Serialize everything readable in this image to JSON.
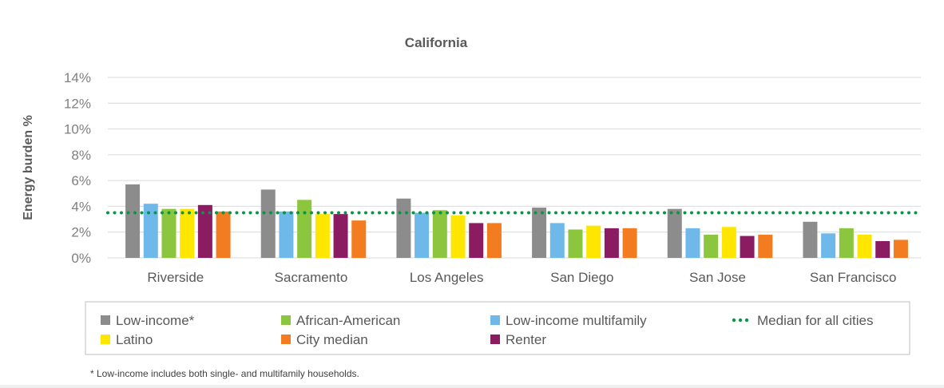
{
  "chart_data": {
    "type": "bar",
    "title": "California",
    "ylabel": "Energy burden %",
    "xlabel": "",
    "ylim": [
      0,
      14
    ],
    "yticks": [
      0,
      2,
      4,
      6,
      8,
      10,
      12,
      14
    ],
    "ytick_labels": [
      "0%",
      "2%",
      "4%",
      "6%",
      "8%",
      "10%",
      "12%",
      "14%"
    ],
    "grid": true,
    "categories": [
      "Riverside",
      "Sacramento",
      "Los Angeles",
      "San Diego",
      "San Jose",
      "San Francisco"
    ],
    "series": [
      {
        "name": "Low-income*",
        "color": "#8c8c8c",
        "values": [
          5.7,
          5.3,
          4.6,
          3.9,
          3.8,
          2.8
        ]
      },
      {
        "name": "Low-income multifamily",
        "color": "#6fb8ea",
        "values": [
          4.2,
          3.6,
          3.5,
          2.7,
          2.3,
          1.9
        ]
      },
      {
        "name": "African-American",
        "color": "#8cc63f",
        "values": [
          3.8,
          4.5,
          3.7,
          2.2,
          1.8,
          2.3
        ]
      },
      {
        "name": "Latino",
        "color": "#ffe600",
        "values": [
          3.8,
          3.4,
          3.3,
          2.5,
          2.4,
          1.8
        ]
      },
      {
        "name": "Renter",
        "color": "#8b1c62",
        "values": [
          4.1,
          3.4,
          2.7,
          2.3,
          1.7,
          1.3
        ]
      },
      {
        "name": "City median",
        "color": "#f47c20",
        "values": [
          3.6,
          2.9,
          2.7,
          2.3,
          1.8,
          1.4
        ]
      }
    ],
    "reference_line": {
      "name": "Median for all cities",
      "value": 3.5,
      "color": "#009a44",
      "style": "dotted"
    },
    "legend": {
      "position": "bottom",
      "items": [
        {
          "label": "Low-income*",
          "color": "#8c8c8c",
          "kind": "box"
        },
        {
          "label": "African-American",
          "color": "#8cc63f",
          "kind": "box"
        },
        {
          "label": "Low-income multifamily",
          "color": "#6fb8ea",
          "kind": "box"
        },
        {
          "label": "Median for all cities",
          "color": "#009a44",
          "kind": "dots"
        },
        {
          "label": "Latino",
          "color": "#ffe600",
          "kind": "box"
        },
        {
          "label": "City median",
          "color": "#f47c20",
          "kind": "box"
        },
        {
          "label": "Renter",
          "color": "#8b1c62",
          "kind": "box"
        }
      ]
    },
    "footnote": "* Low-income includes both single- and multifamily households."
  }
}
